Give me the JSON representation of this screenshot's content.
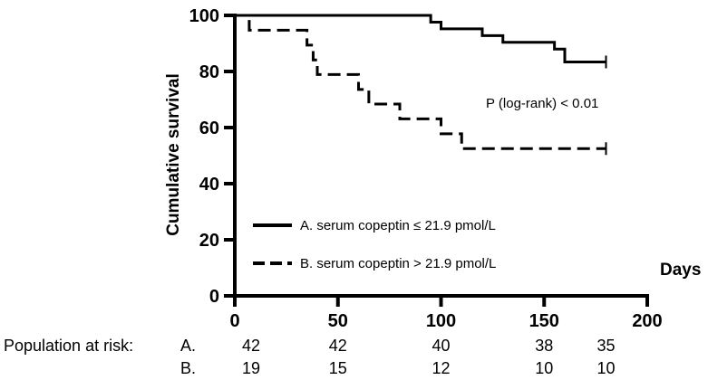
{
  "chart_data": {
    "type": "line",
    "title": "",
    "xlabel": "Days",
    "ylabel": "Cumulative survival",
    "xlim": [
      0,
      200
    ],
    "ylim": [
      0,
      100
    ],
    "x_ticks": [
      "0",
      "50",
      "100",
      "150",
      "200"
    ],
    "y_ticks": [
      "0",
      "20",
      "40",
      "60",
      "80",
      "100"
    ],
    "grid": false,
    "legend_position": "bottom-left",
    "annotation": "P  (log-rank) < 0.01",
    "series": [
      {
        "name": "A. serum copeptin ≤ 21.9 pmol/L",
        "style": "solid",
        "x": [
          0,
          90,
          95,
          100,
          120,
          130,
          155,
          160,
          180
        ],
        "y": [
          100,
          100,
          97.6,
          95.2,
          92.8,
          90.4,
          88.0,
          83.4,
          83.4
        ]
      },
      {
        "name": "B. serum copeptin > 21.9 pmol/L",
        "style": "dashed",
        "x": [
          0,
          7,
          35,
          38,
          40,
          60,
          65,
          80,
          100,
          110,
          180
        ],
        "y": [
          100,
          94.7,
          89.4,
          84.1,
          78.9,
          73.6,
          68.4,
          63.1,
          57.8,
          52.5,
          52.5
        ]
      }
    ],
    "risk_table": {
      "label": "Population at risk:",
      "times": [
        0,
        50,
        100,
        150,
        180
      ],
      "rows": [
        {
          "group": "A.",
          "values": [
            "42",
            "42",
            "40",
            "38",
            "35"
          ]
        },
        {
          "group": "B.",
          "values": [
            "19",
            "15",
            "12",
            "10",
            "10"
          ]
        }
      ]
    },
    "colors": {
      "line": "#000000",
      "axis": "#000000",
      "background": "#ffffff"
    }
  }
}
